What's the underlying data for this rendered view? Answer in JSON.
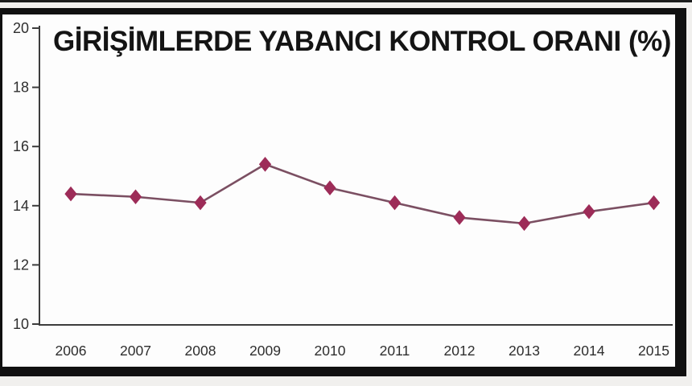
{
  "window": {
    "outer_background": "#f1f0ee"
  },
  "chart_data": {
    "type": "line",
    "title": "GİRİŞİMLERDE YABANCI KONTROL ORANI (%)",
    "categories": [
      "2006",
      "2007",
      "2008",
      "2009",
      "2010",
      "2011",
      "2012",
      "2013",
      "2014",
      "2015"
    ],
    "values": [
      14.4,
      14.3,
      14.1,
      15.4,
      14.6,
      14.1,
      13.6,
      13.4,
      13.8,
      14.1
    ],
    "xlabel": "",
    "ylabel": "",
    "ylim": [
      10,
      20
    ],
    "yticks": [
      10,
      12,
      14,
      16,
      18,
      20
    ],
    "grid": false,
    "legend": "none",
    "marker": "diamond",
    "colors": {
      "line": "#7b4f62",
      "marker": "#9d2c58",
      "axis": "#3c3c3c",
      "tick_text": "#2e2e2e",
      "title_text": "#141414",
      "frame": "#101010",
      "plot_background": "#fdfdfd"
    }
  }
}
